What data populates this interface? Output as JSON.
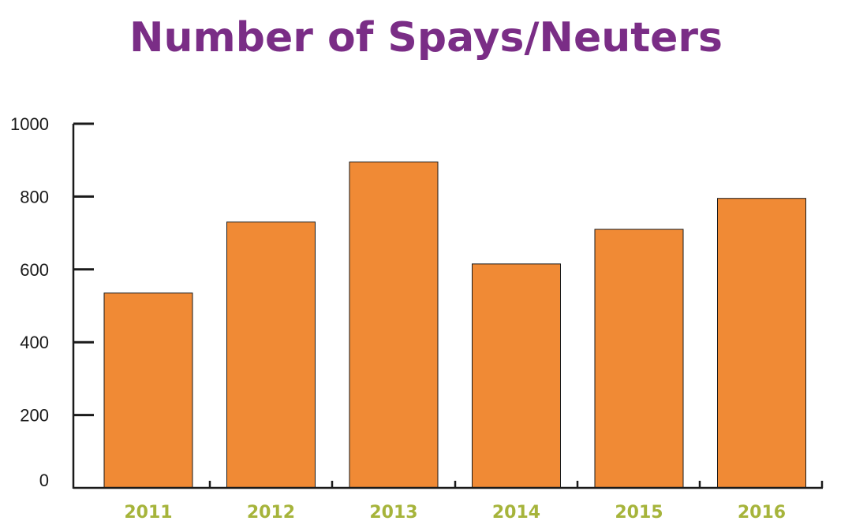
{
  "colors": {
    "title": "#7a2d86",
    "bar": "#f08a35",
    "bar_stroke": "#1a1a1a",
    "axis": "#1a1a1a",
    "xtick": "#a6b43b"
  },
  "chart_data": {
    "type": "bar",
    "title": "Number of Spays/Neuters",
    "xlabel": "",
    "ylabel": "",
    "categories": [
      "2011",
      "2012",
      "2013",
      "2014",
      "2015",
      "2016"
    ],
    "values": [
      535,
      730,
      895,
      615,
      710,
      795
    ],
    "ylim": [
      0,
      1000
    ],
    "yticks": [
      0,
      200,
      400,
      600,
      800,
      1000
    ],
    "grid": false
  }
}
